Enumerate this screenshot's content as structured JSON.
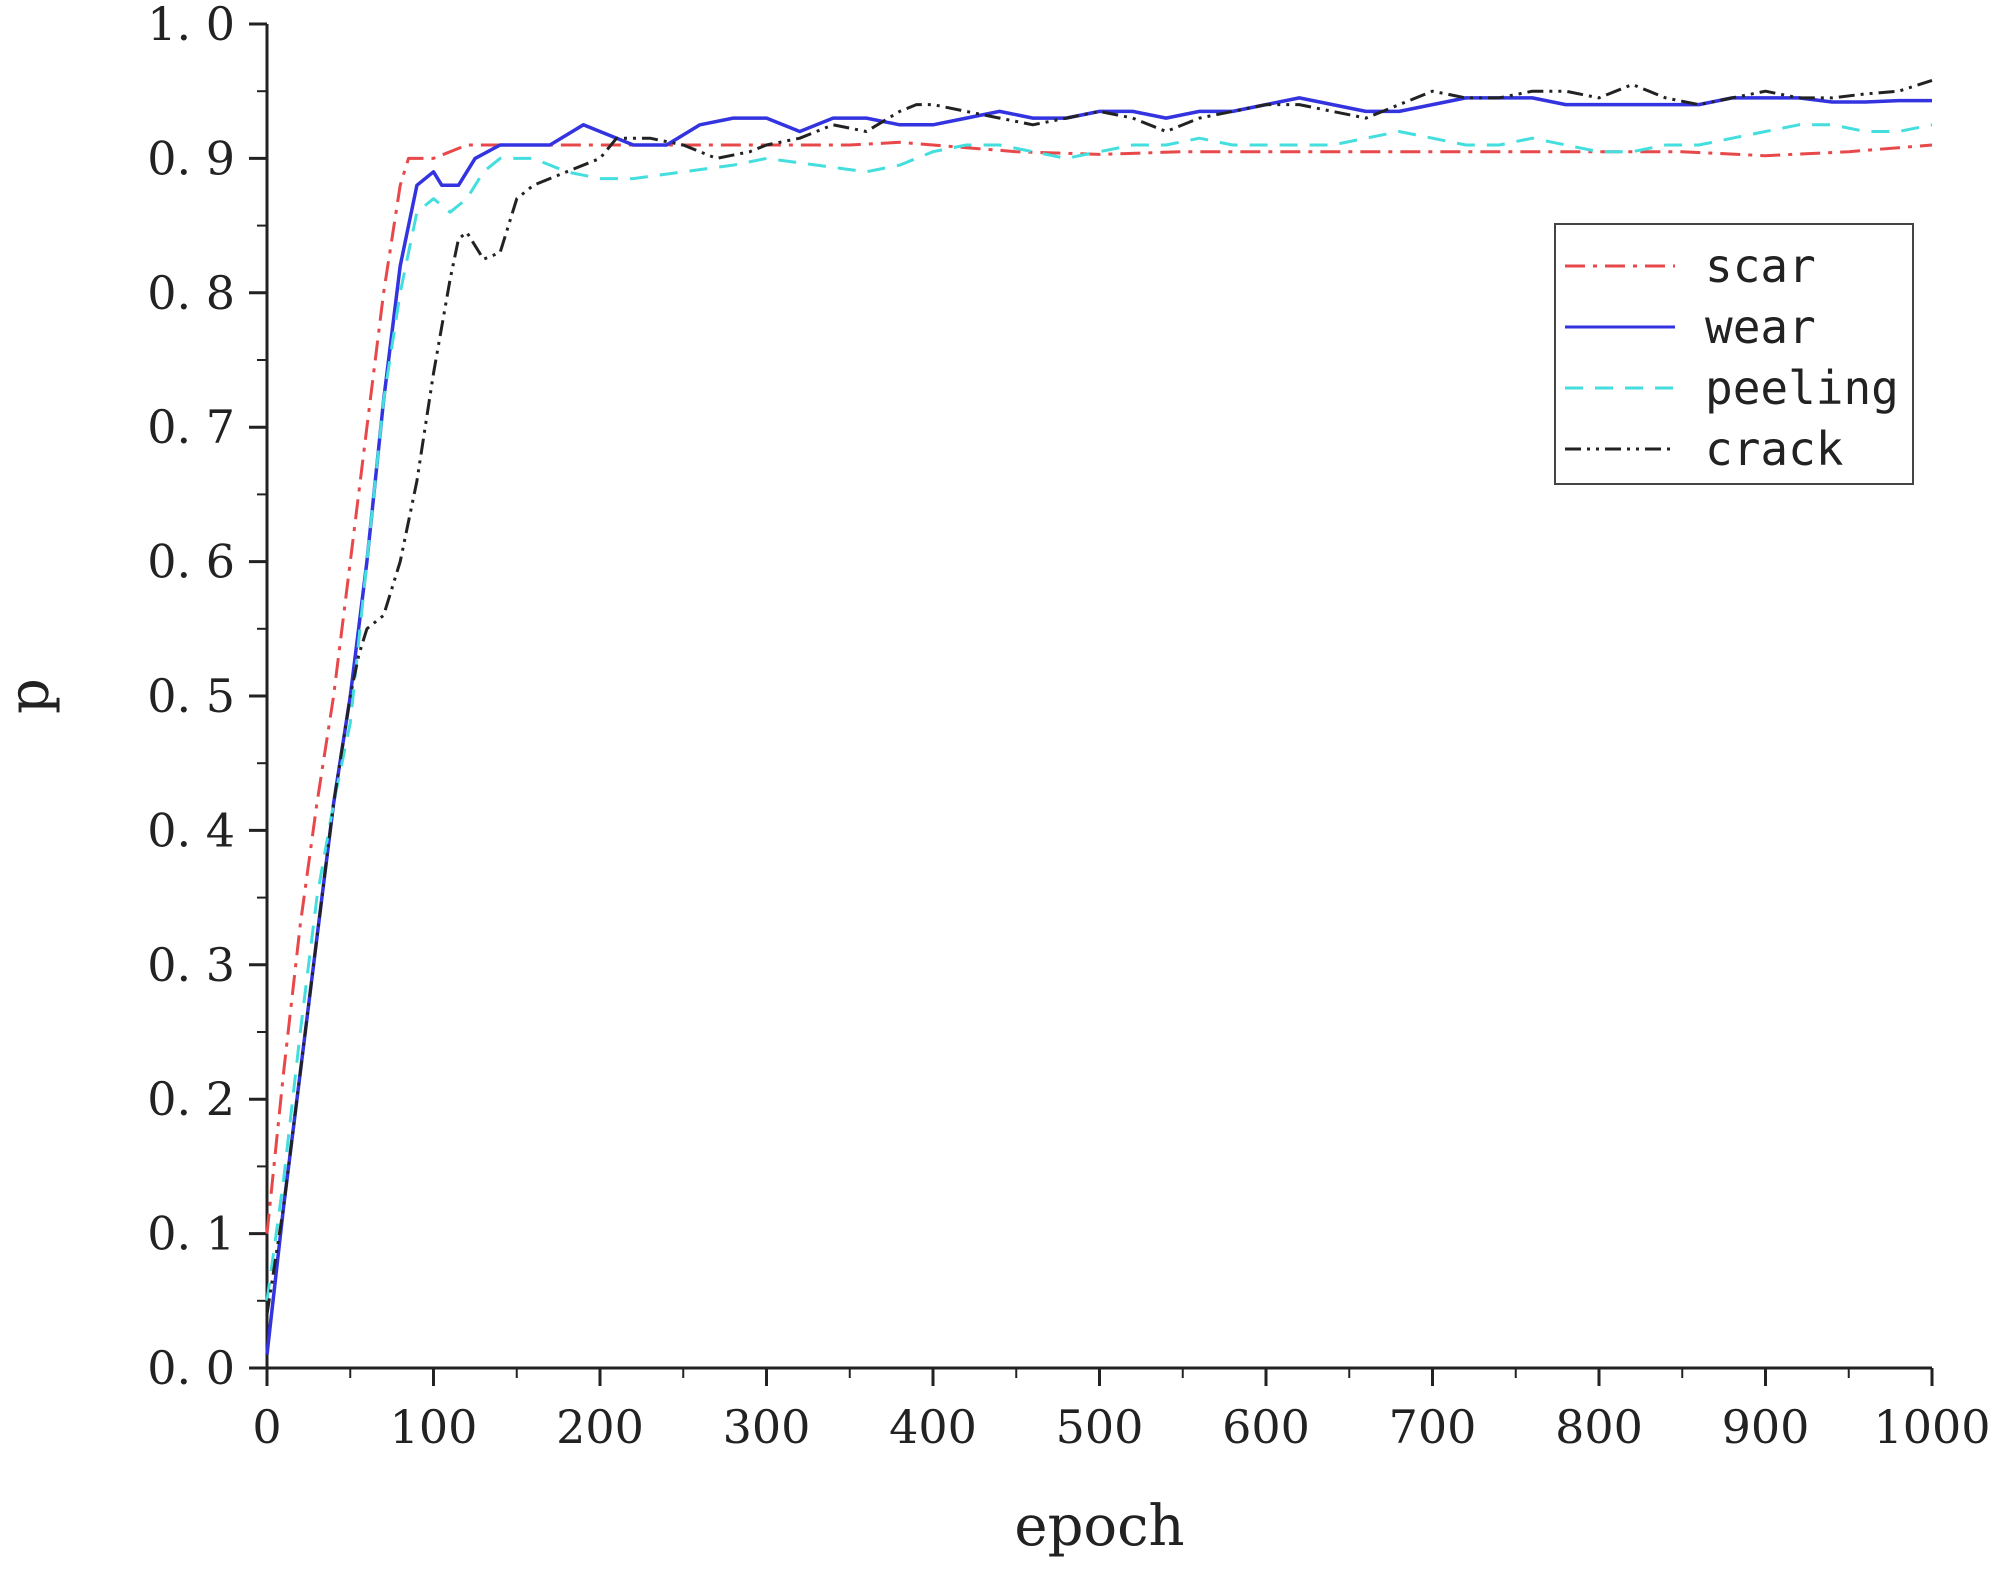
{
  "chart_data": {
    "type": "line",
    "title": "",
    "xlabel": "epoch",
    "ylabel": "p",
    "xlim": [
      0,
      1000
    ],
    "ylim": [
      0.0,
      1.0
    ],
    "x_ticks": [
      0,
      100,
      200,
      300,
      400,
      500,
      600,
      700,
      800,
      900,
      1000
    ],
    "x_tick_labels": [
      "0",
      "100",
      "200",
      "300",
      "400",
      "500",
      "600",
      "700",
      "800",
      "900",
      "1000"
    ],
    "y_ticks": [
      0.0,
      0.1,
      0.2,
      0.3,
      0.4,
      0.5,
      0.6,
      0.7,
      0.8,
      0.9,
      1.0
    ],
    "y_tick_labels": [
      "0. 0",
      "0. 1",
      "0. 2",
      "0. 3",
      "0. 4",
      "0. 5",
      "0. 6",
      "0. 7",
      "0. 8",
      "0. 9",
      "1. 0"
    ],
    "grid": false,
    "legend_position": "top-right",
    "series": [
      {
        "name": "scar",
        "color": "#e8484a",
        "dash": "dash-dot",
        "points": [
          [
            0,
            0.1
          ],
          [
            10,
            0.22
          ],
          [
            20,
            0.33
          ],
          [
            30,
            0.42
          ],
          [
            40,
            0.5
          ],
          [
            50,
            0.6
          ],
          [
            60,
            0.7
          ],
          [
            70,
            0.8
          ],
          [
            80,
            0.88
          ],
          [
            85,
            0.9
          ],
          [
            90,
            0.9
          ],
          [
            100,
            0.9
          ],
          [
            120,
            0.91
          ],
          [
            150,
            0.91
          ],
          [
            200,
            0.91
          ],
          [
            250,
            0.91
          ],
          [
            300,
            0.91
          ],
          [
            350,
            0.91
          ],
          [
            380,
            0.912
          ],
          [
            400,
            0.91
          ],
          [
            450,
            0.905
          ],
          [
            500,
            0.903
          ],
          [
            550,
            0.905
          ],
          [
            600,
            0.905
          ],
          [
            650,
            0.905
          ],
          [
            700,
            0.905
          ],
          [
            750,
            0.905
          ],
          [
            800,
            0.905
          ],
          [
            850,
            0.905
          ],
          [
            900,
            0.902
          ],
          [
            950,
            0.905
          ],
          [
            1000,
            0.91
          ]
        ]
      },
      {
        "name": "wear",
        "color": "#3333e0",
        "dash": "solid",
        "points": [
          [
            0,
            0.01
          ],
          [
            10,
            0.12
          ],
          [
            20,
            0.22
          ],
          [
            30,
            0.32
          ],
          [
            40,
            0.42
          ],
          [
            50,
            0.5
          ],
          [
            60,
            0.6
          ],
          [
            70,
            0.72
          ],
          [
            80,
            0.82
          ],
          [
            90,
            0.88
          ],
          [
            100,
            0.89
          ],
          [
            105,
            0.88
          ],
          [
            115,
            0.88
          ],
          [
            125,
            0.9
          ],
          [
            140,
            0.91
          ],
          [
            150,
            0.91
          ],
          [
            170,
            0.91
          ],
          [
            190,
            0.925
          ],
          [
            200,
            0.92
          ],
          [
            220,
            0.91
          ],
          [
            240,
            0.91
          ],
          [
            260,
            0.925
          ],
          [
            280,
            0.93
          ],
          [
            300,
            0.93
          ],
          [
            320,
            0.92
          ],
          [
            340,
            0.93
          ],
          [
            360,
            0.93
          ],
          [
            380,
            0.925
          ],
          [
            400,
            0.925
          ],
          [
            420,
            0.93
          ],
          [
            440,
            0.935
          ],
          [
            460,
            0.93
          ],
          [
            480,
            0.93
          ],
          [
            500,
            0.935
          ],
          [
            520,
            0.935
          ],
          [
            540,
            0.93
          ],
          [
            560,
            0.935
          ],
          [
            580,
            0.935
          ],
          [
            600,
            0.94
          ],
          [
            620,
            0.945
          ],
          [
            640,
            0.94
          ],
          [
            660,
            0.935
          ],
          [
            680,
            0.935
          ],
          [
            700,
            0.94
          ],
          [
            720,
            0.945
          ],
          [
            740,
            0.945
          ],
          [
            760,
            0.945
          ],
          [
            780,
            0.94
          ],
          [
            800,
            0.94
          ],
          [
            820,
            0.94
          ],
          [
            840,
            0.94
          ],
          [
            860,
            0.94
          ],
          [
            880,
            0.945
          ],
          [
            900,
            0.945
          ],
          [
            920,
            0.945
          ],
          [
            940,
            0.942
          ],
          [
            960,
            0.942
          ],
          [
            980,
            0.943
          ],
          [
            1000,
            0.943
          ]
        ]
      },
      {
        "name": "peeling",
        "color": "#44dede",
        "dash": "dashed",
        "points": [
          [
            0,
            0.05
          ],
          [
            10,
            0.14
          ],
          [
            20,
            0.25
          ],
          [
            30,
            0.35
          ],
          [
            40,
            0.42
          ],
          [
            50,
            0.48
          ],
          [
            60,
            0.6
          ],
          [
            70,
            0.72
          ],
          [
            80,
            0.8
          ],
          [
            90,
            0.86
          ],
          [
            100,
            0.87
          ],
          [
            110,
            0.86
          ],
          [
            120,
            0.87
          ],
          [
            130,
            0.89
          ],
          [
            140,
            0.9
          ],
          [
            160,
            0.9
          ],
          [
            180,
            0.89
          ],
          [
            200,
            0.885
          ],
          [
            220,
            0.885
          ],
          [
            250,
            0.89
          ],
          [
            280,
            0.895
          ],
          [
            300,
            0.9
          ],
          [
            330,
            0.895
          ],
          [
            360,
            0.89
          ],
          [
            380,
            0.895
          ],
          [
            400,
            0.905
          ],
          [
            420,
            0.91
          ],
          [
            440,
            0.91
          ],
          [
            460,
            0.905
          ],
          [
            480,
            0.9
          ],
          [
            500,
            0.905
          ],
          [
            520,
            0.91
          ],
          [
            540,
            0.91
          ],
          [
            560,
            0.915
          ],
          [
            580,
            0.91
          ],
          [
            600,
            0.91
          ],
          [
            620,
            0.91
          ],
          [
            640,
            0.91
          ],
          [
            660,
            0.915
          ],
          [
            680,
            0.92
          ],
          [
            700,
            0.915
          ],
          [
            720,
            0.91
          ],
          [
            740,
            0.91
          ],
          [
            760,
            0.915
          ],
          [
            780,
            0.91
          ],
          [
            800,
            0.905
          ],
          [
            820,
            0.905
          ],
          [
            840,
            0.91
          ],
          [
            860,
            0.91
          ],
          [
            880,
            0.915
          ],
          [
            900,
            0.92
          ],
          [
            920,
            0.925
          ],
          [
            940,
            0.925
          ],
          [
            960,
            0.92
          ],
          [
            980,
            0.92
          ],
          [
            1000,
            0.925
          ]
        ]
      },
      {
        "name": "crack",
        "color": "#222222",
        "dash": "dash-dot-dot",
        "points": [
          [
            0,
            0.04
          ],
          [
            10,
            0.12
          ],
          [
            20,
            0.22
          ],
          [
            30,
            0.32
          ],
          [
            40,
            0.42
          ],
          [
            50,
            0.5
          ],
          [
            55,
            0.53
          ],
          [
            60,
            0.55
          ],
          [
            65,
            0.555
          ],
          [
            70,
            0.56
          ],
          [
            80,
            0.6
          ],
          [
            90,
            0.66
          ],
          [
            100,
            0.74
          ],
          [
            110,
            0.81
          ],
          [
            115,
            0.84
          ],
          [
            120,
            0.845
          ],
          [
            130,
            0.825
          ],
          [
            140,
            0.83
          ],
          [
            150,
            0.87
          ],
          [
            160,
            0.88
          ],
          [
            180,
            0.89
          ],
          [
            200,
            0.9
          ],
          [
            210,
            0.915
          ],
          [
            230,
            0.915
          ],
          [
            250,
            0.91
          ],
          [
            270,
            0.9
          ],
          [
            290,
            0.905
          ],
          [
            300,
            0.91
          ],
          [
            320,
            0.915
          ],
          [
            340,
            0.925
          ],
          [
            360,
            0.92
          ],
          [
            380,
            0.935
          ],
          [
            390,
            0.94
          ],
          [
            400,
            0.94
          ],
          [
            420,
            0.935
          ],
          [
            440,
            0.93
          ],
          [
            460,
            0.925
          ],
          [
            480,
            0.93
          ],
          [
            500,
            0.935
          ],
          [
            520,
            0.93
          ],
          [
            540,
            0.92
          ],
          [
            560,
            0.93
          ],
          [
            580,
            0.935
          ],
          [
            600,
            0.94
          ],
          [
            620,
            0.94
          ],
          [
            640,
            0.935
          ],
          [
            660,
            0.93
          ],
          [
            680,
            0.94
          ],
          [
            700,
            0.95
          ],
          [
            720,
            0.945
          ],
          [
            740,
            0.945
          ],
          [
            760,
            0.95
          ],
          [
            780,
            0.95
          ],
          [
            800,
            0.945
          ],
          [
            820,
            0.955
          ],
          [
            840,
            0.945
          ],
          [
            860,
            0.94
          ],
          [
            880,
            0.945
          ],
          [
            900,
            0.95
          ],
          [
            920,
            0.945
          ],
          [
            940,
            0.945
          ],
          [
            960,
            0.948
          ],
          [
            980,
            0.95
          ],
          [
            1000,
            0.958
          ]
        ]
      }
    ]
  }
}
